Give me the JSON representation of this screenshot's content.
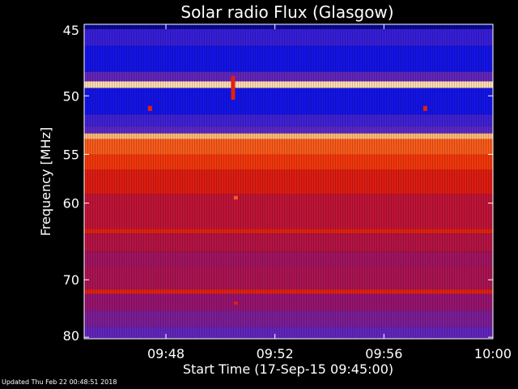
{
  "chart_data": {
    "type": "heatmap",
    "title": "Solar radio Flux (Glasgow)",
    "xlabel": "Start Time (17-Sep-15 09:45:00)",
    "ylabel": "Frequency [MHz]",
    "x_ticks": [
      "09:48",
      "09:52",
      "09:56",
      "10:00"
    ],
    "x_tick_minutes": [
      3,
      7,
      11,
      15
    ],
    "xlim_minutes": [
      0,
      15
    ],
    "y_ticks": [
      45,
      50,
      55,
      60,
      70,
      80
    ],
    "ylim": [
      45,
      80.3
    ],
    "y_scale": "reciprocal",
    "colormap": "blue-purple-red-orange-white",
    "bands": [
      {
        "f0": 45.0,
        "f1": 45.3,
        "level": 0.05
      },
      {
        "f0": 45.3,
        "f1": 46.4,
        "level": 0.2
      },
      {
        "f0": 46.4,
        "f1": 48.2,
        "level": 0.12
      },
      {
        "f0": 48.2,
        "f1": 48.9,
        "level": 0.3
      },
      {
        "f0": 48.9,
        "f1": 49.4,
        "level": 0.95
      },
      {
        "f0": 49.4,
        "f1": 51.5,
        "level": 0.12
      },
      {
        "f0": 51.5,
        "f1": 52.5,
        "level": 0.22
      },
      {
        "f0": 52.5,
        "f1": 53.1,
        "level": 0.28
      },
      {
        "f0": 53.1,
        "f1": 53.6,
        "level": 0.9
      },
      {
        "f0": 53.6,
        "f1": 55.0,
        "level": 0.75
      },
      {
        "f0": 55.0,
        "f1": 56.5,
        "level": 0.68
      },
      {
        "f0": 56.5,
        "f1": 59.0,
        "level": 0.58
      },
      {
        "f0": 59.0,
        "f1": 63.0,
        "level": 0.5
      },
      {
        "f0": 63.0,
        "f1": 63.6,
        "level": 0.6
      },
      {
        "f0": 63.6,
        "f1": 66.0,
        "level": 0.48
      },
      {
        "f0": 66.0,
        "f1": 68.0,
        "level": 0.44
      },
      {
        "f0": 68.0,
        "f1": 71.5,
        "level": 0.46
      },
      {
        "f0": 71.5,
        "f1": 72.2,
        "level": 0.6
      },
      {
        "f0": 72.2,
        "f1": 75.0,
        "level": 0.42
      },
      {
        "f0": 75.0,
        "f1": 78.0,
        "level": 0.36
      },
      {
        "f0": 78.0,
        "f1": 80.3,
        "level": 0.3
      }
    ],
    "bursts": [
      {
        "t": 5.45,
        "f0": 48.5,
        "f1": 50.3,
        "level": 0.6
      },
      {
        "t": 5.55,
        "f0": 59.2,
        "f1": 59.6,
        "level": 0.75
      },
      {
        "t": 5.55,
        "f0": 73.5,
        "f1": 74.0,
        "level": 0.6
      },
      {
        "t": 2.4,
        "f0": 50.8,
        "f1": 51.2,
        "level": 0.6
      },
      {
        "t": 12.5,
        "f0": 50.8,
        "f1": 51.2,
        "level": 0.6
      }
    ]
  },
  "footer": "Updated Thu Feb 22 00:48:51 2018"
}
